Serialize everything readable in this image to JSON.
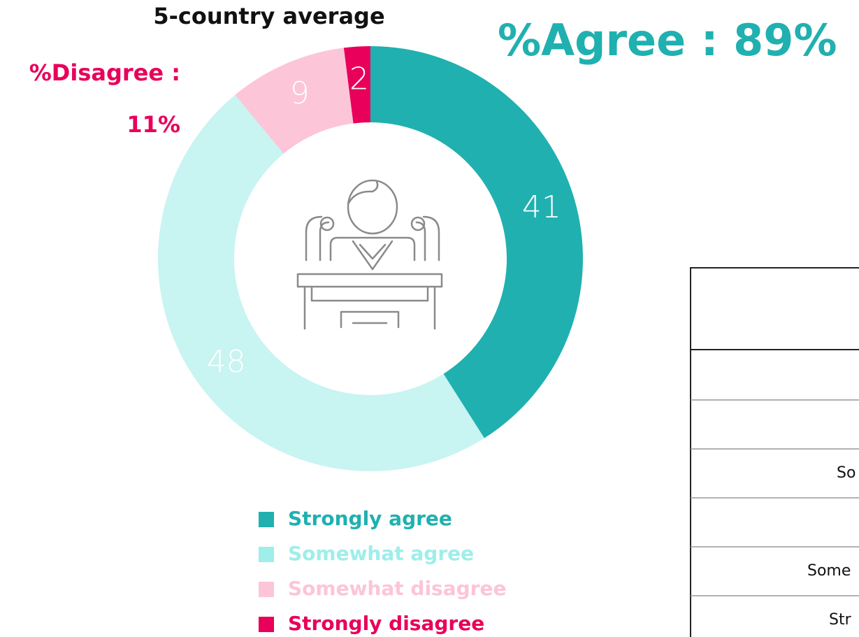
{
  "chart_data": {
    "type": "pie",
    "donut": true,
    "title": "5-country average",
    "annotations": [
      "%Agree : 89%",
      "%Disagree :",
      "11%"
    ],
    "annotation_colors": [
      "#20b0b0",
      "#e8005a",
      "#e8005a"
    ],
    "categories": [
      "Strongly agree",
      "Somewhat agree",
      "Somewhat disagree",
      "Strongly disagree"
    ],
    "values": [
      41,
      48,
      9,
      2
    ],
    "colors": [
      "#20b0b0",
      "#c8f4f2",
      "#fcc5d8",
      "#e8005a"
    ],
    "legend_colors": [
      "#20b0b0",
      "#9eeeea",
      "#fcc5d8",
      "#e8005a"
    ]
  },
  "table": {
    "rows": [
      [
        ""
      ],
      [
        ""
      ],
      [
        ""
      ],
      [
        "So"
      ],
      [
        ""
      ],
      [
        "Some"
      ],
      [
        "Str"
      ]
    ]
  }
}
